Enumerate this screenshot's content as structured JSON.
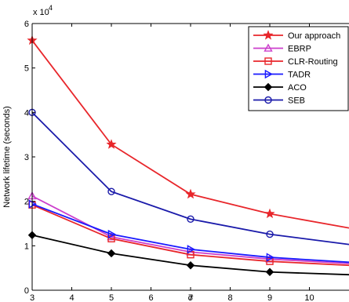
{
  "chart_data": {
    "type": "line",
    "title": "",
    "xlabel": "σ",
    "ylabel": "Network lifetime (seconds)",
    "y_multiplier_label": "x 10^4",
    "y_multiplier_base": "x 10",
    "y_multiplier_exp": "4",
    "xlim": [
      3,
      11
    ],
    "ylim": [
      0,
      6
    ],
    "x_ticks": [
      "3",
      "4",
      "5",
      "6",
      "7",
      "8",
      "9",
      "10"
    ],
    "y_ticks": [
      "0",
      "1",
      "2",
      "3",
      "4",
      "5",
      "6"
    ],
    "x": [
      3,
      5,
      7,
      9,
      11
    ],
    "legend_position": "top-right",
    "series": [
      {
        "name": "Our approach",
        "color": "#e8262b",
        "marker": "star",
        "values": [
          5.62,
          3.28,
          2.16,
          1.72,
          1.4
        ]
      },
      {
        "name": "EBRP",
        "color": "#cc3fcc",
        "marker": "triangle-up",
        "values": [
          2.12,
          1.2,
          0.86,
          0.7,
          0.6
        ]
      },
      {
        "name": "CLR-Routing",
        "color": "#e8262b",
        "marker": "square",
        "values": [
          1.92,
          1.16,
          0.8,
          0.65,
          0.56
        ]
      },
      {
        "name": "TADR",
        "color": "#1a1aff",
        "marker": "triangle-right",
        "values": [
          1.94,
          1.26,
          0.92,
          0.74,
          0.63
        ]
      },
      {
        "name": "ACO",
        "color": "#000000",
        "marker": "diamond",
        "values": [
          1.24,
          0.83,
          0.56,
          0.41,
          0.35
        ]
      },
      {
        "name": "SEB",
        "color": "#1a1aaa",
        "marker": "circle",
        "values": [
          4.0,
          2.22,
          1.6,
          1.26,
          1.03
        ]
      }
    ]
  }
}
